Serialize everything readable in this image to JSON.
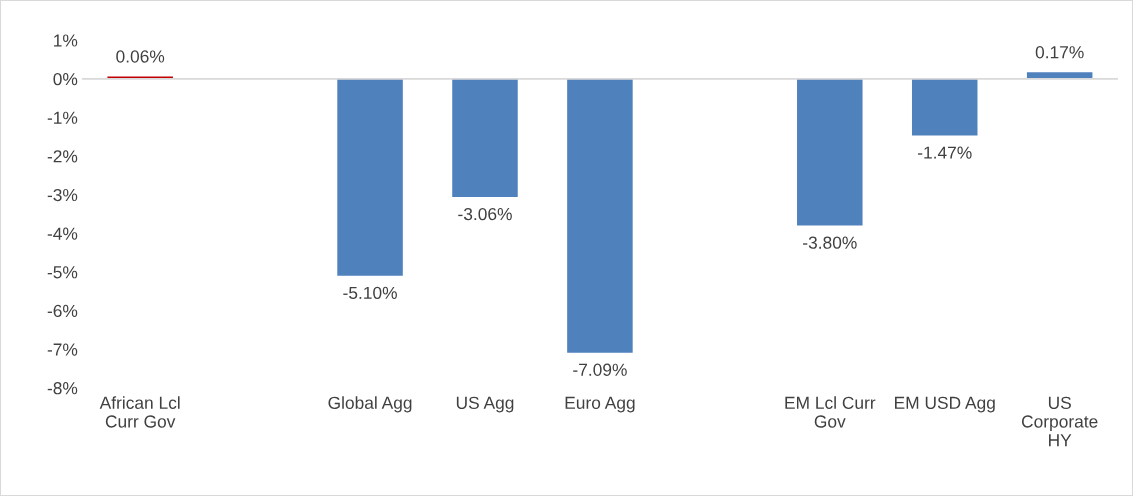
{
  "chart_data": {
    "type": "bar",
    "categories": [
      "African Lcl Curr Gov",
      null,
      "Global Agg",
      "US Agg",
      "Euro Agg",
      null,
      "EM Lcl Curr Gov",
      "EM USD Agg",
      "US Corporate HY"
    ],
    "values": [
      0.06,
      null,
      -5.1,
      -3.06,
      -7.09,
      null,
      -3.8,
      -1.47,
      0.17
    ],
    "colors": [
      "#c00000",
      "#4f81bd",
      "#4f81bd",
      "#4f81bd",
      "#4f81bd",
      "#4f81bd",
      "#4f81bd",
      "#4f81bd",
      "#4f81bd"
    ],
    "value_labels": [
      "0.06%",
      null,
      "-5.10%",
      "-3.06%",
      "-7.09%",
      null,
      "-3.80%",
      "-1.47%",
      "0.17%"
    ],
    "ylim": [
      -8,
      1
    ],
    "yticks": [
      {
        "value": 1,
        "label": "1%"
      },
      {
        "value": 0,
        "label": "0%"
      },
      {
        "value": -1,
        "label": "-1%"
      },
      {
        "value": -2,
        "label": "-2%"
      },
      {
        "value": -3,
        "label": "-3%"
      },
      {
        "value": -4,
        "label": "-4%"
      },
      {
        "value": -5,
        "label": "-5%"
      },
      {
        "value": -6,
        "label": "-6%"
      },
      {
        "value": -7,
        "label": "-7%"
      },
      {
        "value": -8,
        "label": "-8%"
      }
    ],
    "legend": false
  }
}
